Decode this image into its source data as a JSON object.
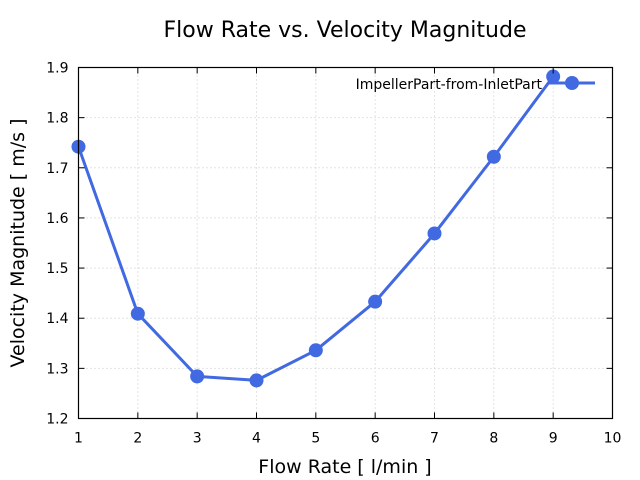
{
  "chart_data": {
    "type": "line",
    "title": "Flow Rate vs. Velocity Magnitude",
    "xlabel": "Flow Rate [ l/min ]",
    "ylabel": "Velocity Magnitude [ m/s ]",
    "xlim": [
      1,
      10
    ],
    "ylim": [
      1.2,
      1.9
    ],
    "xticks": [
      "1",
      "2",
      "3",
      "4",
      "5",
      "6",
      "7",
      "8",
      "9",
      "10"
    ],
    "yticks": [
      "1.2",
      "1.3",
      "1.4",
      "1.5",
      "1.6",
      "1.7",
      "1.8",
      "1.9"
    ],
    "grid": true,
    "legend_position": "top-right",
    "series": [
      {
        "name": "ImpellerPart-from-InletPart",
        "color": "#4169e1",
        "x": [
          1,
          2,
          3,
          4,
          5,
          6,
          7,
          8,
          9
        ],
        "values": [
          1.742,
          1.409,
          1.284,
          1.276,
          1.336,
          1.433,
          1.569,
          1.722,
          1.882
        ]
      }
    ]
  }
}
